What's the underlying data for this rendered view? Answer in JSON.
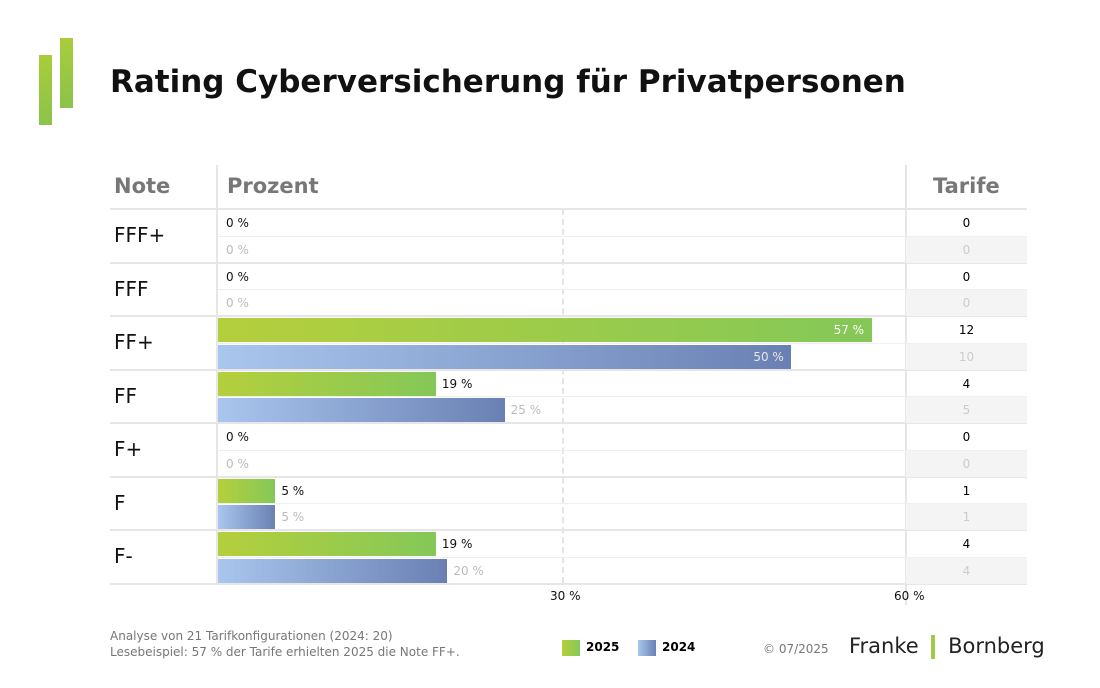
{
  "title": "Rating Cyberversicherung für Privatpersonen",
  "colors": {
    "y2025": "#9dcb48",
    "y2024": "#7d93c4"
  },
  "chart_data": {
    "type": "bar",
    "orientation": "horizontal",
    "headers": {
      "note": "Note",
      "percent": "Prozent",
      "count": "Tarife"
    },
    "categories": [
      "FFF+",
      "FFF",
      "FF+",
      "FF",
      "F+",
      "F",
      "F-"
    ],
    "series": [
      {
        "name": "2025",
        "values": [
          0,
          0,
          57,
          19,
          0,
          5,
          19
        ],
        "labels": [
          "0 %",
          "0 %",
          "57 %",
          "19 %",
          "0 %",
          "5 %",
          "19 %"
        ],
        "counts": [
          0,
          0,
          12,
          4,
          0,
          1,
          4
        ]
      },
      {
        "name": "2024",
        "values": [
          0,
          0,
          50,
          25,
          0,
          5,
          20
        ],
        "labels": [
          "0 %",
          "0 %",
          "50 %",
          "25 %",
          "0 %",
          "5 %",
          "20 %"
        ],
        "counts": [
          0,
          0,
          10,
          5,
          0,
          1,
          4
        ]
      }
    ],
    "xlim": [
      0,
      60
    ],
    "ticks": [
      {
        "v": 30,
        "label": "30 %"
      },
      {
        "v": 60,
        "label": "60 %"
      }
    ]
  },
  "footer": {
    "line1": "Analyse von 21 Tarifkonfigurationen (2024: 20)",
    "line2": "Lesebeispiel: 57 % der Tarife erhielten 2025 die Note FF+.",
    "copyright": "© 07/2025",
    "brand_left": "Franke",
    "brand_right": "Bornberg"
  }
}
